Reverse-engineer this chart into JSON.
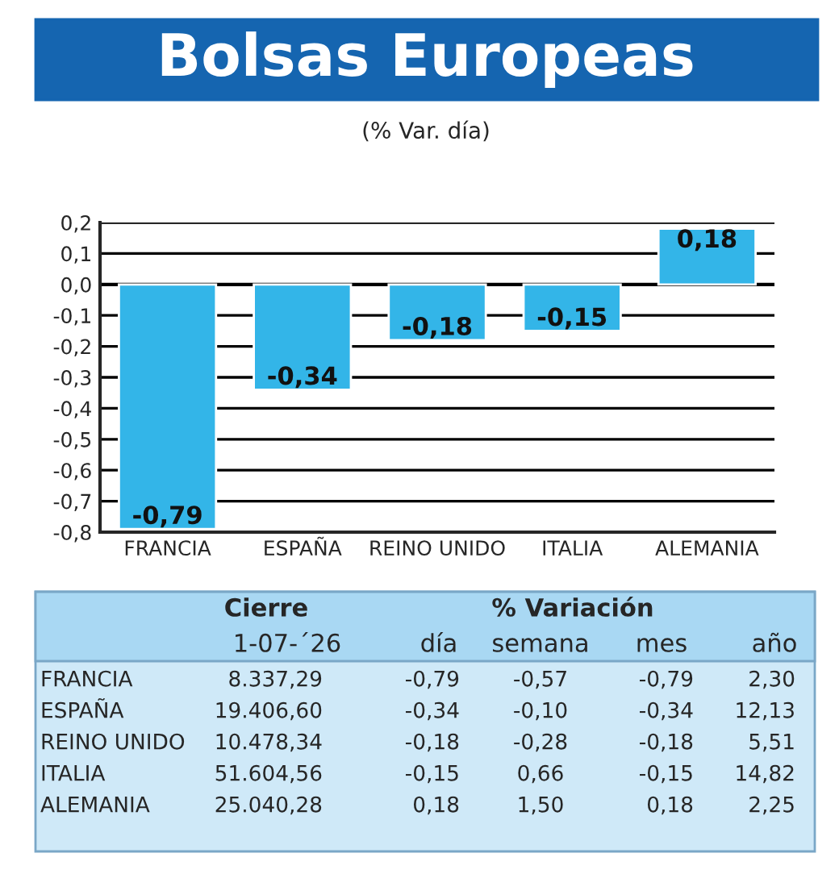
{
  "chart_data": {
    "type": "bar",
    "title": "Bolsas Europeas",
    "subtitle": "(% Var. día)",
    "categories": [
      "FRANCIA",
      "ESPAÑA",
      "REINO UNIDO",
      "ITALIA",
      "ALEMANIA"
    ],
    "values": [
      -0.79,
      -0.34,
      -0.18,
      -0.15,
      0.18
    ],
    "value_labels": [
      "-0,79",
      "-0,34",
      "-0,18",
      "-0,15",
      "0,18"
    ],
    "color": "#33b5e8",
    "ylim": [
      -0.8,
      0.2
    ],
    "yticks": [
      {
        "value": -0.8,
        "label": "-0,8"
      },
      {
        "value": -0.7,
        "label": "-0,7"
      },
      {
        "value": -0.6,
        "label": "-0,6"
      },
      {
        "value": -0.5,
        "label": "-0,5"
      },
      {
        "value": -0.4,
        "label": "-0,4"
      },
      {
        "value": -0.3,
        "label": "-0,3"
      },
      {
        "value": -0.2,
        "label": "-0,2"
      },
      {
        "value": -0.1,
        "label": "-0,1"
      },
      {
        "value": 0,
        "label": "0,0"
      },
      {
        "value": 0.1,
        "label": "0,1"
      },
      {
        "value": 0.2,
        "label": "0,2"
      }
    ],
    "grid": "y",
    "annotations": [
      "Cierre",
      "% Variación",
      "1-07-´26",
      "día",
      "semana",
      "mes",
      "año",
      "FRANCIA",
      "8.337,29",
      "-0,79",
      "-0,57",
      "-0,79",
      "2,30",
      "ESPAÑA",
      "19.406,60",
      "-0,34",
      "-0,10",
      "-0,34",
      "12,13",
      "REINO UNIDO",
      "10.478,34",
      "-0,18",
      "-0,28",
      "-0,18",
      "5,51",
      "ITALIA",
      "51.604,56",
      "-0,15",
      "0,66",
      "-0,15",
      "14,82",
      "ALEMANIA",
      "25.040,28",
      "0,18",
      "1,50",
      "0,18",
      "2,25"
    ]
  }
}
